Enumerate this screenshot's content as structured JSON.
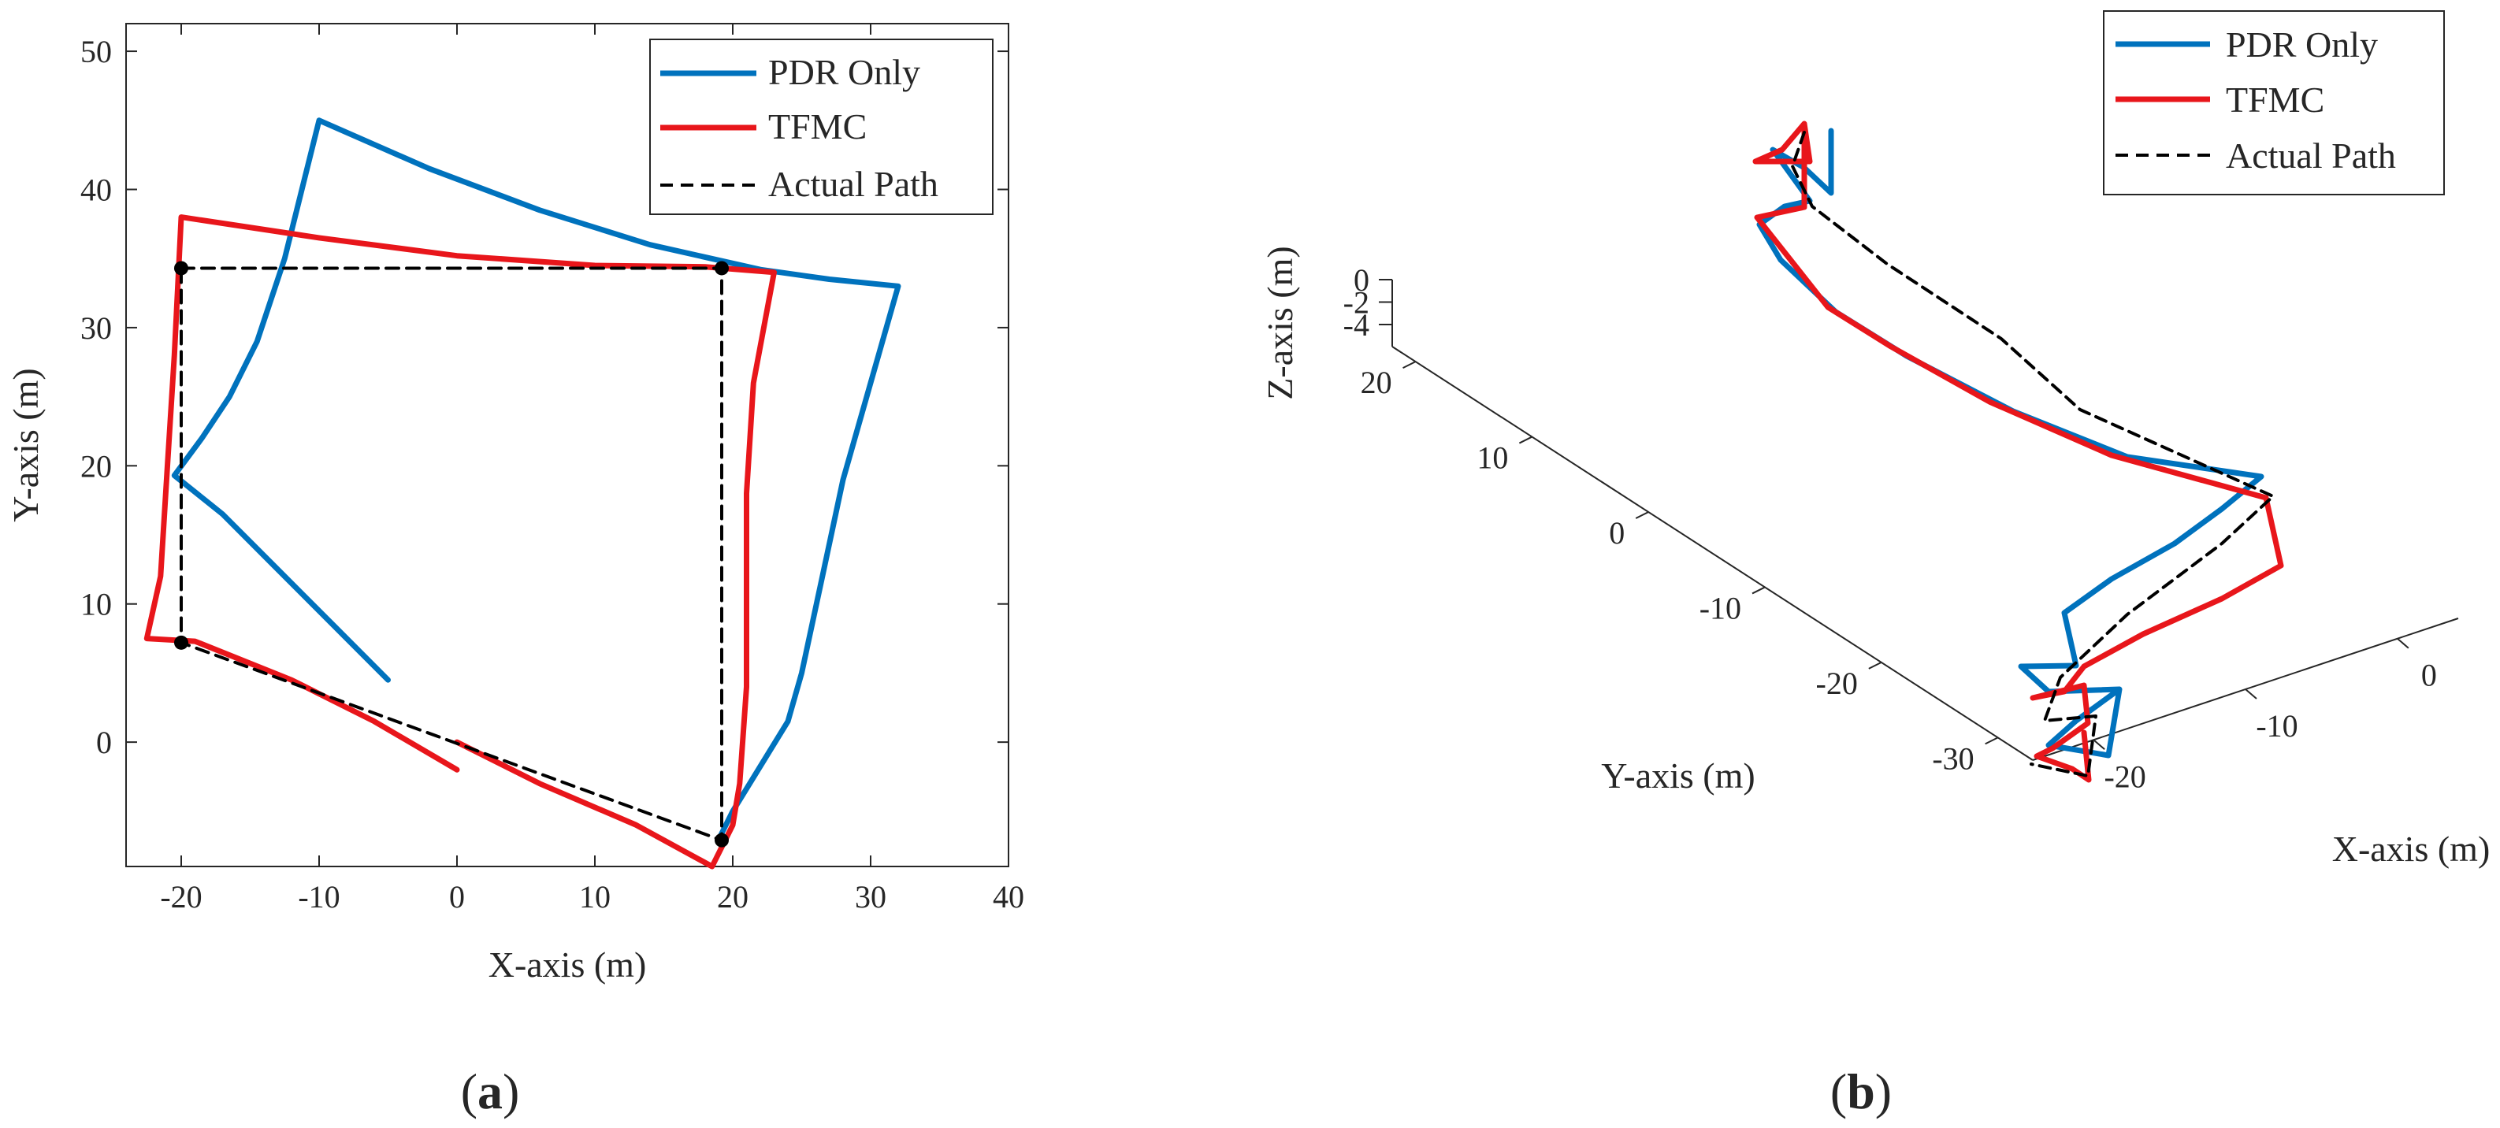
{
  "panels": {
    "a": {
      "label_open": "(",
      "label_letter": "a",
      "label_close": ")"
    },
    "b": {
      "label_open": "(",
      "label_letter": "b",
      "label_close": ")"
    }
  },
  "colors": {
    "pdr": "#0072BD",
    "tfmc": "#E8161B",
    "actual": "#000000",
    "axis": "#262626"
  },
  "chart_data": [
    {
      "type": "line",
      "panel": "a",
      "xlabel": "X-axis (m)",
      "ylabel": "Y-axis (m)",
      "xlim": [
        -24,
        40
      ],
      "ylim": [
        -9,
        52
      ],
      "xticks": [
        -20,
        -10,
        0,
        10,
        20,
        30,
        40
      ],
      "yticks": [
        0,
        10,
        20,
        30,
        40,
        50
      ],
      "grid": false,
      "legend_position": "top-right",
      "series": [
        {
          "name": "PDR Only",
          "color": "#0072BD",
          "style": "solid",
          "points": [
            [
              -5,
              4.5
            ],
            [
              -9,
              8.5
            ],
            [
              -13,
              12.5
            ],
            [
              -17,
              16.5
            ],
            [
              -20.5,
              19.3
            ],
            [
              -18.5,
              22
            ],
            [
              -16.5,
              25
            ],
            [
              -14.5,
              29
            ],
            [
              -12.5,
              35
            ],
            [
              -10,
              45
            ],
            [
              -2,
              41.5
            ],
            [
              6,
              38.5
            ],
            [
              14,
              36
            ],
            [
              22,
              34.2
            ],
            [
              27,
              33.5
            ],
            [
              32,
              33
            ],
            [
              30,
              26
            ],
            [
              28,
              19
            ],
            [
              26.5,
              12
            ],
            [
              25,
              5
            ],
            [
              24,
              1.5
            ],
            [
              20,
              -5
            ],
            [
              19,
              -7
            ]
          ]
        },
        {
          "name": "TFMC",
          "color": "#E8161B",
          "style": "solid",
          "points": [
            [
              0,
              -2
            ],
            [
              -6,
              1.5
            ],
            [
              -12,
              4.5
            ],
            [
              -19,
              7.3
            ],
            [
              -22.5,
              7.5
            ],
            [
              -21.5,
              12
            ],
            [
              -21,
              20
            ],
            [
              -20.5,
              28
            ],
            [
              -20,
              38
            ],
            [
              -10,
              36.5
            ],
            [
              0,
              35.2
            ],
            [
              10,
              34.5
            ],
            [
              18,
              34.4
            ],
            [
              23,
              34
            ],
            [
              21.5,
              26
            ],
            [
              21,
              18
            ],
            [
              21,
              10
            ],
            [
              21,
              4
            ],
            [
              20.5,
              -3
            ],
            [
              20,
              -6
            ],
            [
              18.5,
              -9
            ],
            [
              13,
              -6
            ],
            [
              6,
              -3
            ],
            [
              0,
              0
            ]
          ]
        },
        {
          "name": "Actual Path",
          "color": "#000000",
          "style": "dashed",
          "points": [
            [
              -20,
              34.3
            ],
            [
              19.2,
              34.3
            ],
            [
              19.2,
              -7.1
            ],
            [
              -20,
              7.2
            ],
            [
              -20,
              34.3
            ]
          ],
          "markers": [
            [
              -20,
              34.3
            ],
            [
              19.2,
              34.3
            ],
            [
              19.2,
              -7.1
            ],
            [
              -20,
              7.2
            ]
          ]
        }
      ]
    },
    {
      "type": "line",
      "panel": "b",
      "projection": "3d",
      "xlabel": "X-axis (m)",
      "ylabel": "Y-axis (m)",
      "zlabel": "Z-axis (m)",
      "xticks": [
        -20,
        -10,
        0
      ],
      "yticks": [
        -30,
        -20,
        -10,
        0,
        10,
        20
      ],
      "zticks": [
        0,
        -2,
        -4
      ],
      "grid": false,
      "legend_position": "top-right",
      "series": [
        {
          "name": "PDR Only",
          "color": "#0072BD",
          "style": "solid"
        },
        {
          "name": "TFMC",
          "color": "#E8161B",
          "style": "solid"
        },
        {
          "name": "Actual Path",
          "color": "#000000",
          "style": "dashed"
        }
      ]
    }
  ]
}
